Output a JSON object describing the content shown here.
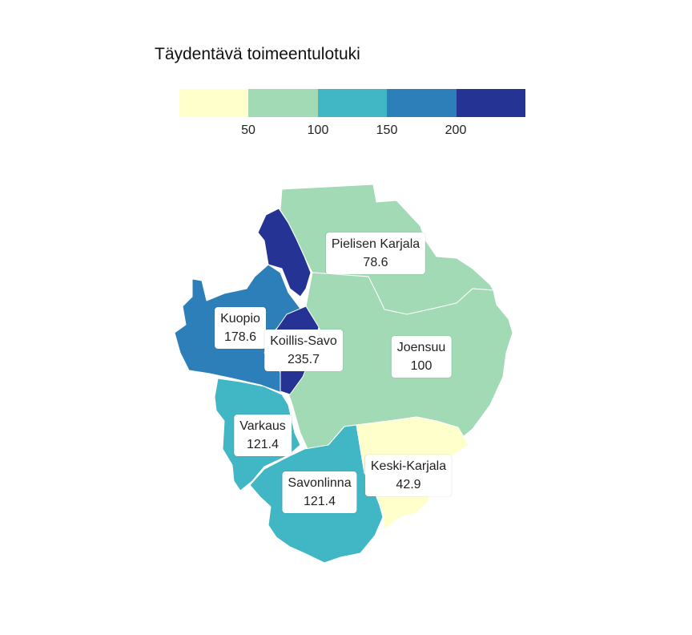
{
  "legend": {
    "title": "Täydentävä toimeentulotuki",
    "colors": [
      "#ffffcc",
      "#a1dab4",
      "#41b6c4",
      "#2c7fb8",
      "#253494"
    ],
    "ticks": [
      "50",
      "100",
      "150",
      "200"
    ]
  },
  "regions": [
    {
      "key": "pielisen",
      "name": "Pielisen Karjala",
      "value": "78.6",
      "color": "#a1dab4"
    },
    {
      "key": "joensuu",
      "name": "Joensuu",
      "value": "100",
      "color": "#a1dab4"
    },
    {
      "key": "kuopio",
      "name": "Kuopio",
      "value": "178.6",
      "color": "#2c7fb8"
    },
    {
      "key": "koillis",
      "name": "Koillis-Savo",
      "value": "235.7",
      "color": "#253494"
    },
    {
      "key": "varkaus",
      "name": "Varkaus",
      "value": "121.4",
      "color": "#41b6c4"
    },
    {
      "key": "savonlinna",
      "name": "Savonlinna",
      "value": "121.4",
      "color": "#41b6c4"
    },
    {
      "key": "keski",
      "name": "Keski-Karjala",
      "value": "42.9",
      "color": "#ffffcc"
    }
  ]
}
